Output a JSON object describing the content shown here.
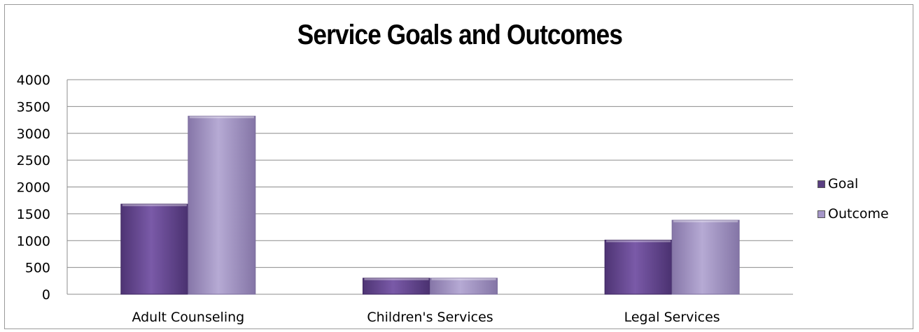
{
  "chart_data": {
    "type": "bar",
    "title": "Service Goals and Outcomes",
    "categories": [
      "Adult Counseling",
      "Children's Services",
      "Legal Services"
    ],
    "series": [
      {
        "name": "Goal",
        "values": [
          1680,
          300,
          1010
        ],
        "color": "#6a4c93"
      },
      {
        "name": "Outcome",
        "values": [
          3320,
          300,
          1380
        ],
        "color": "#a596c8"
      }
    ],
    "yticks": [
      "0",
      "500",
      "1000",
      "1500",
      "2000",
      "2500",
      "3000",
      "3500",
      "4000"
    ],
    "ylim": [
      0,
      4000
    ],
    "grid": true,
    "legend_position": "right"
  }
}
